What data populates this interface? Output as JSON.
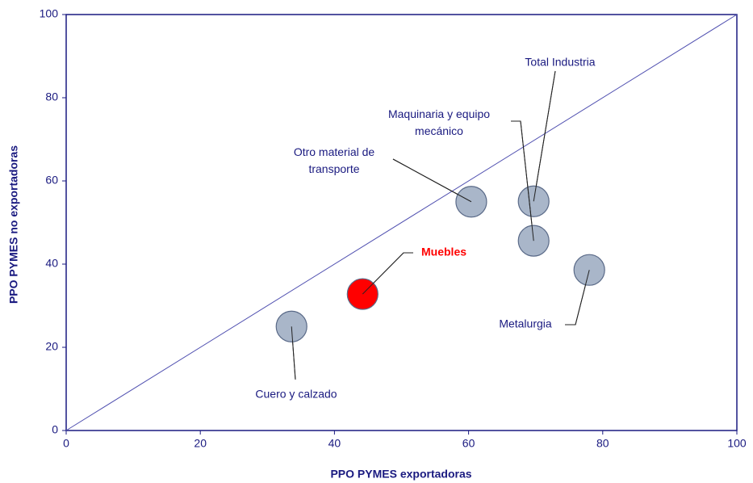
{
  "chart_data": {
    "type": "scatter",
    "x_label": "PPO PYMES exportadoras",
    "y_label": "PPO PYMES no exportadoras",
    "labels": [
      "Cuero y calzado",
      "Muebles",
      "Otro material de\ntransporte",
      "Total  Industria",
      "Maquinaria  y equipo\nmecánico",
      "Metalurgia"
    ],
    "x": [
      33.6,
      44.2,
      60.4,
      69.7,
      69.7,
      78
    ],
    "values": [
      25,
      32.8,
      55,
      55.1,
      45.6,
      38.6
    ],
    "colors": [
      "#a9b6c9",
      "#ff0000",
      "#a9b6c9",
      "#a9b6c9",
      "#a9b6c9",
      "#a9b6c9"
    ],
    "label_colors": [
      "#1a1a80",
      "#ff0000",
      "#1a1a80",
      "#1a1a80",
      "#1a1a80",
      "#1a1a80"
    ],
    "xlim": [
      0,
      100
    ],
    "ylim": [
      0,
      100
    ],
    "xticks": [
      0,
      20,
      40,
      60,
      80,
      100
    ],
    "yticks": [
      0,
      20,
      40,
      60,
      80,
      100
    ],
    "diagonal": true
  }
}
